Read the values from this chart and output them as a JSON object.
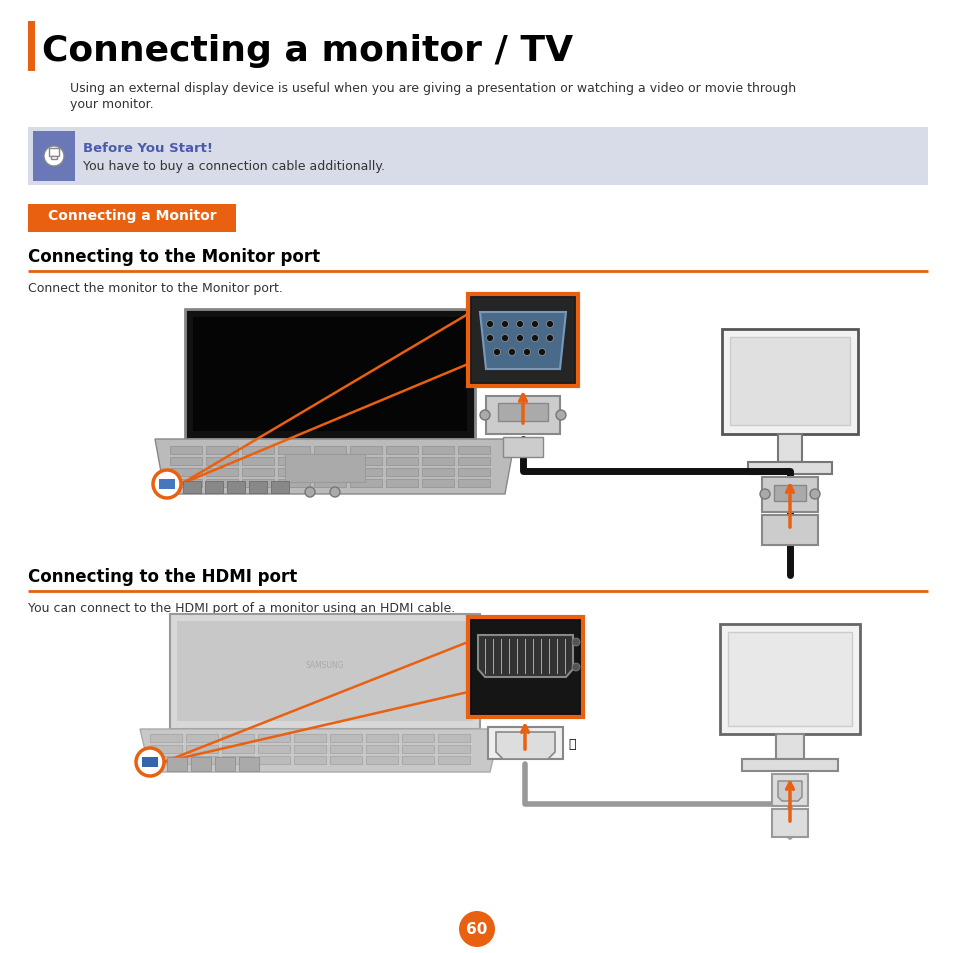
{
  "title": "Connecting a monitor / TV",
  "title_bar_color": "#E86010",
  "title_color": "#000000",
  "subtitle_line1": "Using an external display device is useful when you are giving a presentation or watching a video or movie through",
  "subtitle_line2": "your monitor.",
  "before_start_title": "Before You Start!",
  "before_start_bg": "#D8DCE8",
  "before_start_icon_bg": "#6B78B8",
  "before_start_text": "You have to buy a connection cable additionally.",
  "before_start_title_color": "#4A5AAF",
  "section_badge_text": "Connecting a Monitor",
  "section_badge_bg": "#E86010",
  "section_badge_text_color": "#FFFFFF",
  "section1_title": "Connecting to the Monitor port",
  "section1_desc": "Connect the monitor to the Monitor port.",
  "section2_title": "Connecting to the HDMI port",
  "section2_desc": "You can connect to the HDMI port of a monitor using an HDMI cable.",
  "orange": "#E86010",
  "page_number": "60",
  "page_num_bg": "#E86010",
  "page_num_color": "#FFFFFF",
  "bg_color": "#FFFFFF"
}
